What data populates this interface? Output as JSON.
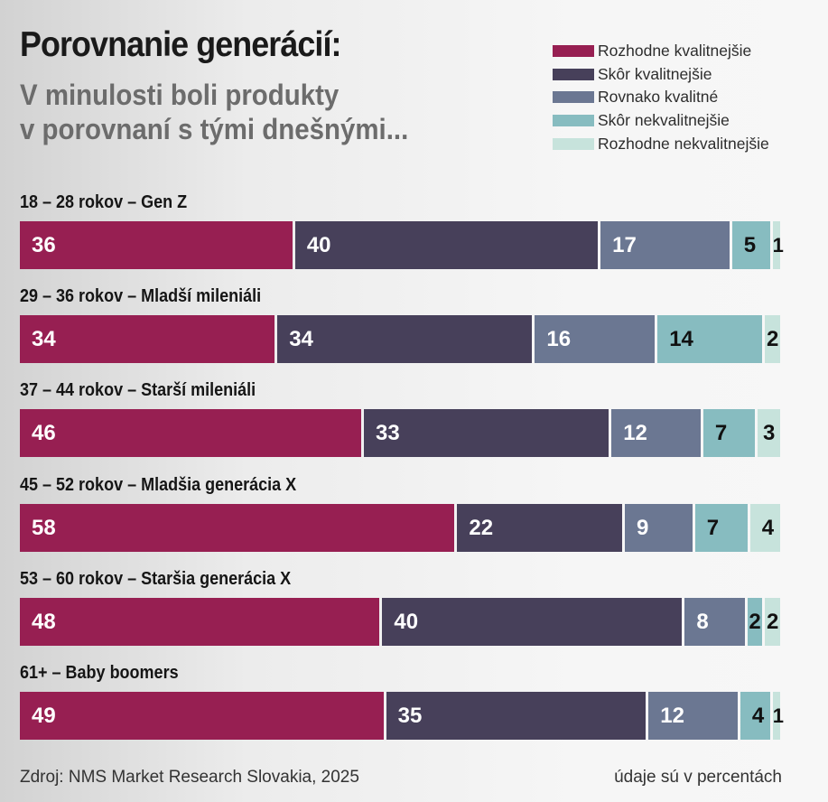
{
  "header": {
    "title": "Porovnanie generácií:",
    "subtitle_line1": "V minulosti boli produkty",
    "subtitle_line2": "v porovnaní s tými dnešnými..."
  },
  "legend": [
    {
      "label": "Rozhodne kvalitnejšie",
      "color": "#971f52"
    },
    {
      "label": "Skôr kvalitnejšie",
      "color": "#47405a"
    },
    {
      "label": "Rovnako kvalitné",
      "color": "#6b7792"
    },
    {
      "label": "Skôr nekvalitnejšie",
      "color": "#87bcc0"
    },
    {
      "label": "Rozhodne nekvalitnejšie",
      "color": "#c7e3dc"
    }
  ],
  "footer": {
    "source": "Zdroj: NMS Market Research Slovakia, 2025",
    "unit_note": "údaje sú v percentách"
  },
  "chart_data": {
    "type": "bar",
    "orientation": "horizontal",
    "stacked": true,
    "title": "Porovnanie generácií:",
    "subtitle": "V minulosti boli produkty v porovnaní s tými dnešnými...",
    "categories": [
      "18 – 28 rokov – Gen Z",
      "29 – 36 rokov – Mladší mileniáli",
      "37 – 44 rokov – Starší mileniáli",
      "45 – 52 rokov – Mladšia generácia X",
      "53 – 60 rokov – Staršia generácia X",
      "61+ – Baby boomers"
    ],
    "series": [
      {
        "name": "Rozhodne kvalitnejšie",
        "values": [
          36,
          34,
          46,
          58,
          48,
          49
        ]
      },
      {
        "name": "Skôr kvalitnejšie",
        "values": [
          40,
          34,
          33,
          22,
          40,
          35
        ]
      },
      {
        "name": "Rovnako kvalitné",
        "values": [
          17,
          16,
          12,
          9,
          8,
          12
        ]
      },
      {
        "name": "Skôr nekvalitnejšie",
        "values": [
          5,
          14,
          7,
          7,
          2,
          4
        ]
      },
      {
        "name": "Rozhodne nekvalitnejšie",
        "values": [
          1,
          2,
          3,
          4,
          2,
          1
        ]
      }
    ],
    "text_colors": [
      "#ffffff",
      "#ffffff",
      "#ffffff",
      "#111111",
      "#111111"
    ],
    "xlim": [
      0,
      100
    ],
    "unit": "%",
    "legend_position": "top-right",
    "grid": false
  }
}
